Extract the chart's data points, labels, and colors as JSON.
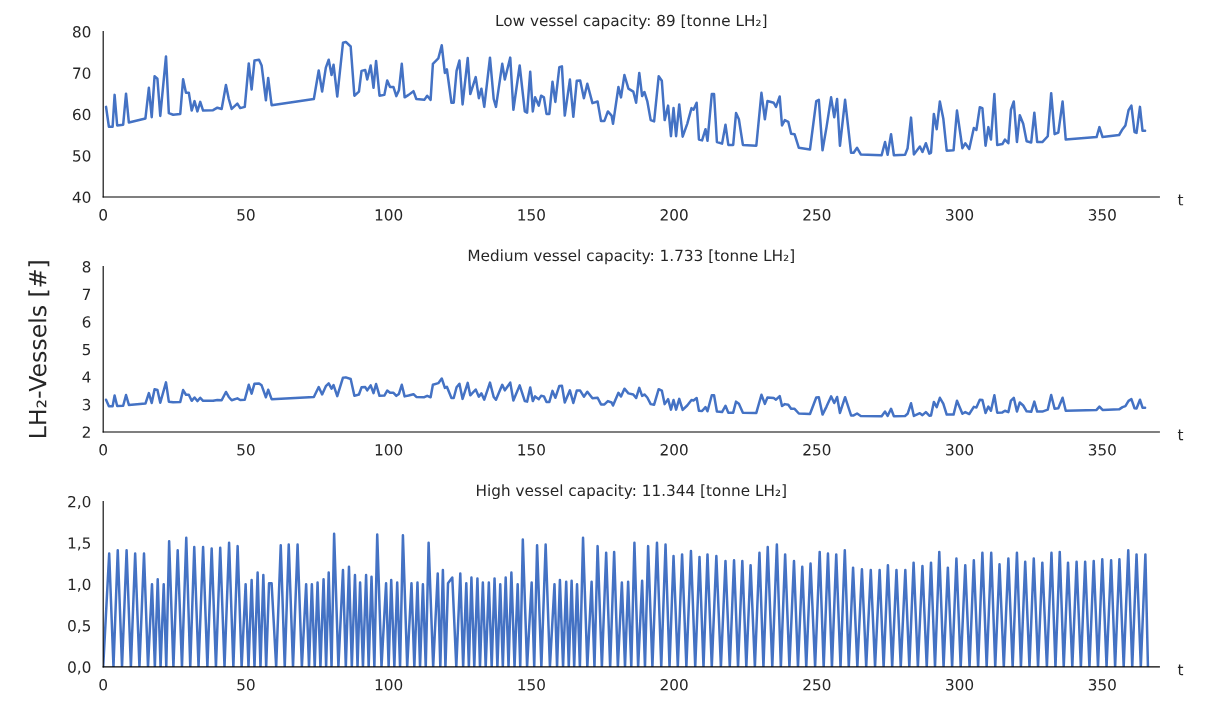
{
  "chart_data": [
    {
      "type": "line",
      "title": "Low vessel capacity: 89 [tonne LH₂]",
      "xlabel": "t",
      "xlim": [
        0,
        370
      ],
      "xticks": [
        0,
        50,
        100,
        150,
        200,
        250,
        300,
        350
      ],
      "ylim": [
        40,
        80
      ],
      "yticks": [
        40,
        50,
        60,
        70,
        80
      ],
      "grid": false,
      "marker": "none",
      "line_style": "solid",
      "x": [
        1,
        2,
        3.3,
        4,
        4.9,
        7,
        8,
        9,
        14.8,
        16,
        17,
        18,
        19,
        20,
        22,
        23,
        24.5,
        27,
        28,
        29,
        30,
        31,
        32,
        33,
        34,
        35,
        38.5,
        40,
        41.5,
        43,
        44,
        45,
        47,
        48,
        49.6,
        51,
        52,
        53,
        54.6,
        55.5,
        57,
        57.8,
        59,
        73.8,
        75.5,
        76.7,
        78,
        79,
        80,
        80.7,
        82,
        84,
        85,
        86.7,
        88,
        89.6,
        90.5,
        91.8,
        92.5,
        93.7,
        94.7,
        95.6,
        96.8,
        98.5,
        99.5,
        100.5,
        101.7,
        102.7,
        103.6,
        104.6,
        105.6,
        107,
        108.7,
        109.7,
        112.5,
        113.5,
        114.7,
        115.5,
        117.4,
        118.6,
        119.7,
        120.4,
        122,
        122.8,
        123.8,
        124.8,
        125.9,
        127.7,
        128.6,
        130.5,
        131.6,
        132.5,
        133.5,
        135.5,
        136.8,
        137.6,
        139.8,
        140.7,
        142.6,
        143.7,
        145.9,
        147.7,
        148.5,
        149.6,
        150.5,
        151.3,
        152.6,
        153.4,
        154.4,
        155.3,
        156.3,
        157.4,
        158.4,
        159.8,
        160.7,
        161.7,
        163.5,
        164.7,
        165.9,
        167.1,
        168.4,
        169.6,
        171.4,
        173.2,
        174.4,
        175.6,
        176.8,
        178.1,
        178.6,
        180.5,
        181.4,
        182.6,
        184,
        185.7,
        186.7,
        187.8,
        188.8,
        189.6,
        190.6,
        191.8,
        193,
        194.6,
        195.7,
        196.7,
        197.9,
        198.9,
        199.8,
        200.7,
        201.8,
        203,
        204.6,
        206.1,
        206.8,
        207.9,
        208.7,
        209.8,
        211,
        211.7,
        213.2,
        214,
        215,
        216.8,
        218,
        219,
        220.7,
        221.7,
        222.7,
        224.1,
        228.8,
        230.6,
        231.8,
        232.7,
        234.9,
        235.7,
        237,
        237.8,
        238.8,
        240,
        241,
        242.2,
        243.7,
        247.6,
        249.8,
        250.7,
        252,
        253.4,
        255,
        256.1,
        257.1,
        258.1,
        259.9,
        262,
        262.9,
        264.1,
        265.4,
        272.7,
        273.9,
        274.8,
        276,
        277,
        280.9,
        281.8,
        283,
        284,
        286.1,
        287,
        288.2,
        289.4,
        290,
        291,
        292,
        293.1,
        294.3,
        295.5,
        297.9,
        299.1,
        301,
        302,
        303.4,
        305,
        305.9,
        307.1,
        308,
        309.1,
        310.1,
        311,
        312.2,
        313.2,
        315,
        315.9,
        317.1,
        318,
        319,
        320.1,
        321.1,
        322.3,
        323.5,
        325.1,
        326.2,
        327.2,
        329,
        330.9,
        332.1,
        333.3,
        334.6,
        336.1,
        337.2,
        348,
        349,
        350.1,
        355.9,
        357.1,
        358.1,
        359.2,
        360.2,
        361.3,
        362,
        363.2,
        364.1,
        365
      ],
      "series": [
        {
          "color": "#4472c4",
          "values": [
            61.8,
            57,
            57,
            64.7,
            57.3,
            57.5,
            65,
            58,
            59,
            66.4,
            59.3,
            69.2,
            68.6,
            59.6,
            74,
            60.3,
            59.9,
            60.1,
            68.5,
            65.2,
            65.2,
            60.9,
            63.2,
            60.7,
            63,
            60.9,
            61,
            61.6,
            61.3,
            67.1,
            63.7,
            61.3,
            62.6,
            61.5,
            61.8,
            72.3,
            66,
            73,
            73.2,
            71.8,
            63.4,
            68.8,
            62.2,
            63.7,
            70.6,
            65.5,
            71.3,
            73.2,
            69.5,
            72,
            64.3,
            77.3,
            77.5,
            76.4,
            64.5,
            65.5,
            70.5,
            70.7,
            68.4,
            71.8,
            66.4,
            72.9,
            64.5,
            64.7,
            68.2,
            66.6,
            66.6,
            64.4,
            65.8,
            72.2,
            64.1,
            64.7,
            65.6,
            63.7,
            63.5,
            64.5,
            63.5,
            72.2,
            73.5,
            76.7,
            70,
            70.9,
            62.8,
            62.8,
            70.5,
            73,
            62.4,
            73.6,
            64.9,
            69,
            63.9,
            66.2,
            61.8,
            73.7,
            63.7,
            61.8,
            72.2,
            68.4,
            73.7,
            61.1,
            71.8,
            60.7,
            60.4,
            70.3,
            60.7,
            64.1,
            62.1,
            64.5,
            64.1,
            60.1,
            60.1,
            67.9,
            63,
            71.4,
            71.6,
            59.7,
            68.4,
            59.4,
            68.1,
            68.2,
            63.9,
            67.4,
            62.7,
            63.1,
            58.4,
            58.4,
            60.7,
            59.7,
            57.7,
            66.6,
            64.1,
            69.5,
            66.2,
            65.5,
            62.8,
            70,
            64.4,
            65.4,
            63.2,
            58.6,
            58.3,
            69.2,
            68.1,
            58.6,
            62.1,
            54.7,
            61.5,
            54.7,
            62.4,
            54.6,
            57.7,
            61.5,
            61.1,
            62.8,
            53.9,
            53.7,
            56.4,
            53.6,
            64.9,
            64.9,
            53.3,
            52.9,
            57.5,
            52.6,
            52.6,
            60.3,
            58.8,
            52.6,
            52.4,
            65.2,
            58.8,
            63.2,
            62.8,
            61.8,
            64.3,
            57.3,
            58.6,
            58.2,
            55.3,
            55.2,
            51.9,
            51.5,
            63.2,
            63.5,
            51.3,
            56.9,
            64.1,
            59.3,
            63.7,
            52.4,
            63.5,
            50.7,
            50.7,
            51.9,
            50.3,
            50.1,
            53.3,
            50.2,
            55.2,
            50.1,
            50.2,
            51.8,
            59.2,
            50.3,
            52.2,
            50.9,
            53,
            50.5,
            50.7,
            60.1,
            56.4,
            63.1,
            59,
            51.2,
            51.3,
            60.9,
            51.8,
            53,
            51.6,
            56.7,
            56.2,
            61.7,
            61.5,
            52.4,
            56.9,
            53.9,
            64.9,
            52.6,
            52.8,
            53.9,
            53,
            61.1,
            63.1,
            53.3,
            59.8,
            57.7,
            53.5,
            53.2,
            60.4,
            53.3,
            53.3,
            54.7,
            65.1,
            55.2,
            55.6,
            63.1,
            53.9,
            54.5,
            56.9,
            54.5,
            55,
            56.4,
            57.3,
            61,
            62.1,
            55.7,
            55.5,
            61.8,
            56,
            56
          ]
        }
      ]
    },
    {
      "type": "line",
      "title": "Medium vessel capacity: 1.733 [tonne LH₂]",
      "xlabel": "t",
      "ylabel": "LH₂-Vessels [#]",
      "xlim": [
        0,
        370
      ],
      "xticks": [
        0,
        50,
        100,
        150,
        200,
        250,
        300,
        350
      ],
      "ylim": [
        2,
        8
      ],
      "yticks": [
        2,
        3,
        4,
        5,
        6,
        7,
        8
      ],
      "grid": false,
      "marker": "none",
      "line_style": "solid",
      "x": [
        1,
        2,
        3.3,
        4,
        4.9,
        7,
        8,
        9,
        14.8,
        16,
        17,
        18,
        19,
        20,
        22,
        23,
        24.5,
        27,
        28,
        29,
        30,
        31,
        32,
        33,
        34,
        35,
        38.5,
        40,
        41.5,
        43,
        44,
        45,
        47,
        48,
        49.6,
        51,
        52,
        53,
        54.6,
        55.5,
        57,
        57.8,
        59,
        73.8,
        75.5,
        76.7,
        78,
        79,
        80,
        80.7,
        82,
        84,
        85,
        86.7,
        88,
        89.6,
        90.5,
        91.8,
        92.5,
        93.7,
        94.7,
        95.6,
        96.8,
        98.5,
        99.5,
        100.5,
        101.7,
        102.7,
        103.6,
        104.6,
        105.6,
        107,
        108.7,
        109.7,
        112.5,
        113.5,
        114.7,
        115.5,
        117.4,
        118.6,
        119.7,
        120.4,
        122,
        122.8,
        123.8,
        124.8,
        125.9,
        127.7,
        128.6,
        130.5,
        131.6,
        132.5,
        133.5,
        135.5,
        136.8,
        137.6,
        139.8,
        140.7,
        142.6,
        143.7,
        145.9,
        147.7,
        148.5,
        149.6,
        150.5,
        151.3,
        152.6,
        153.4,
        154.4,
        155.3,
        156.3,
        157.4,
        158.4,
        159.8,
        160.7,
        161.7,
        163.5,
        164.7,
        165.9,
        167.1,
        168.4,
        169.6,
        171.4,
        173.2,
        174.4,
        175.6,
        176.8,
        178.1,
        178.6,
        180.5,
        181.4,
        182.6,
        184,
        185.7,
        186.7,
        187.8,
        188.8,
        189.6,
        190.6,
        191.8,
        193,
        194.6,
        195.7,
        196.7,
        197.9,
        198.9,
        199.8,
        200.7,
        201.8,
        203,
        204.6,
        206.1,
        206.8,
        207.9,
        208.7,
        209.8,
        211,
        211.7,
        213.2,
        214,
        215,
        216.8,
        218,
        219,
        220.7,
        221.7,
        222.7,
        224.1,
        228.8,
        230.6,
        231.8,
        232.7,
        234.9,
        235.7,
        237,
        237.8,
        238.8,
        240,
        241,
        242.2,
        243.7,
        247.6,
        249.8,
        250.7,
        252,
        253.4,
        255,
        256.1,
        257.1,
        258.1,
        259.9,
        262,
        262.9,
        264.1,
        265.4,
        272.7,
        273.9,
        274.8,
        276,
        277,
        280.9,
        281.8,
        283,
        284,
        286.1,
        287,
        288.2,
        289.4,
        290,
        291,
        292,
        293.1,
        294.3,
        295.5,
        297.9,
        299.1,
        301,
        302,
        303.4,
        305,
        305.9,
        307.1,
        308,
        309.1,
        310.1,
        311,
        312.2,
        313.2,
        315,
        315.9,
        317.1,
        318,
        319,
        320.1,
        321.1,
        322.3,
        323.5,
        325.1,
        326.2,
        327.2,
        329,
        330.9,
        332.1,
        333.3,
        334.6,
        336.1,
        337.2,
        348,
        349,
        350.1,
        355.9,
        357.1,
        358.1,
        359.2,
        360.2,
        361.3,
        362,
        363.2,
        364.1,
        365
      ],
      "series": [
        {
          "color": "#4472c4",
          "values": [
            3.17,
            2.93,
            2.93,
            3.32,
            2.94,
            2.95,
            3.34,
            2.98,
            3.03,
            3.41,
            3.05,
            3.55,
            3.52,
            3.06,
            3.8,
            3.1,
            3.08,
            3.09,
            3.52,
            3.35,
            3.35,
            3.13,
            3.25,
            3.12,
            3.24,
            3.13,
            3.13,
            3.16,
            3.15,
            3.45,
            3.27,
            3.15,
            3.22,
            3.16,
            3.17,
            3.71,
            3.39,
            3.75,
            3.76,
            3.69,
            3.26,
            3.53,
            3.19,
            3.27,
            3.63,
            3.36,
            3.66,
            3.76,
            3.57,
            3.7,
            3.3,
            3.97,
            3.98,
            3.92,
            3.31,
            3.36,
            3.62,
            3.63,
            3.51,
            3.69,
            3.41,
            3.74,
            3.31,
            3.32,
            3.5,
            3.42,
            3.42,
            3.31,
            3.38,
            3.71,
            3.29,
            3.32,
            3.37,
            3.27,
            3.26,
            3.31,
            3.26,
            3.71,
            3.77,
            3.94,
            3.6,
            3.64,
            3.23,
            3.23,
            3.62,
            3.75,
            3.2,
            3.78,
            3.33,
            3.54,
            3.28,
            3.4,
            3.17,
            3.79,
            3.27,
            3.17,
            3.71,
            3.51,
            3.79,
            3.14,
            3.69,
            3.12,
            3.1,
            3.61,
            3.12,
            3.29,
            3.19,
            3.31,
            3.29,
            3.09,
            3.09,
            3.49,
            3.24,
            3.67,
            3.68,
            3.07,
            3.51,
            3.05,
            3.5,
            3.5,
            3.28,
            3.46,
            3.22,
            3.24,
            3,
            3,
            3.12,
            3.07,
            2.96,
            3.42,
            3.29,
            3.57,
            3.4,
            3.36,
            3.23,
            3.6,
            3.31,
            3.36,
            3.25,
            3.01,
            2.99,
            3.55,
            3.5,
            3.01,
            3.19,
            2.81,
            3.16,
            2.81,
            3.2,
            2.8,
            2.96,
            3.16,
            3.14,
            3.23,
            2.77,
            2.76,
            2.9,
            2.75,
            3.33,
            3.33,
            2.74,
            2.72,
            2.95,
            2.7,
            2.7,
            3.1,
            3.02,
            2.7,
            2.69,
            3.35,
            3.02,
            3.25,
            3.23,
            3.17,
            3.3,
            2.94,
            3.01,
            2.99,
            2.84,
            2.84,
            2.67,
            2.65,
            3.25,
            3.26,
            2.63,
            2.92,
            3.29,
            3.05,
            3.27,
            2.69,
            3.26,
            2.6,
            2.6,
            2.67,
            2.58,
            2.57,
            2.74,
            2.58,
            2.84,
            2.57,
            2.58,
            2.66,
            3.04,
            2.58,
            2.68,
            2.61,
            2.72,
            2.59,
            2.6,
            3.09,
            2.9,
            3.24,
            3.03,
            2.63,
            2.63,
            3.13,
            2.66,
            2.72,
            2.65,
            2.91,
            2.89,
            3.17,
            3.16,
            2.69,
            2.92,
            2.77,
            3.33,
            2.7,
            2.71,
            2.77,
            2.72,
            3.14,
            3.24,
            2.74,
            3.07,
            2.96,
            2.75,
            2.73,
            3.1,
            2.74,
            2.74,
            2.81,
            3.34,
            2.84,
            2.86,
            3.24,
            2.77,
            2.8,
            2.92,
            2.8,
            2.82,
            2.9,
            2.94,
            3.13,
            3.19,
            2.86,
            2.85,
            3.17,
            2.88,
            2.88
          ]
        }
      ]
    },
    {
      "type": "line",
      "title": "High vessel capacity: 11.344 [tonne LH₂]",
      "xlabel": "t",
      "xlim": [
        0,
        370
      ],
      "xticks": [
        0,
        50,
        100,
        150,
        200,
        250,
        300,
        350
      ],
      "ylim": [
        0,
        2
      ],
      "yticks": [
        {
          "value": 0,
          "label": "0,0"
        },
        {
          "value": 0.5,
          "label": "0,5"
        },
        {
          "value": 1,
          "label": "1,0"
        },
        {
          "value": 1.5,
          "label": "1,5"
        },
        {
          "value": 2,
          "label": "2,0"
        }
      ],
      "grid": false,
      "marker": "none",
      "line_style": "solid",
      "x": [
        0,
        2.1,
        3.6,
        5.1,
        6.6,
        8.2,
        9.7,
        11.2,
        12.7,
        14.3,
        15.7,
        17.1,
        18.1,
        19.1,
        20.1,
        21.2,
        22.1,
        23.1,
        24.6,
        26.1,
        27.6,
        29.1,
        30.5,
        31.9,
        33.4,
        35,
        36.5,
        38,
        39.5,
        41,
        42.5,
        44.1,
        45.6,
        47.1,
        48.5,
        49.9,
        50.9,
        52,
        53,
        54.1,
        55.1,
        56.1,
        57.1,
        58.1,
        59,
        60.6,
        62.2,
        63.6,
        65,
        66.5,
        68.1,
        69.6,
        71.1,
        72.1,
        73.1,
        74.1,
        75.1,
        76.1,
        77.2,
        78.1,
        79,
        80,
        80.9,
        82.4,
        84,
        85,
        86.1,
        87.1,
        88.2,
        89.1,
        90,
        91,
        92.1,
        93,
        94,
        95,
        96,
        97.5,
        99.1,
        100,
        100.9,
        102,
        103,
        104,
        105,
        106.5,
        108,
        109,
        110.1,
        111,
        112,
        113,
        114,
        115.6,
        117.2,
        118.1,
        119,
        119.9,
        120.8,
        122.3,
        123.7,
        125.1,
        126.1,
        127.2,
        128.1,
        129,
        130,
        131.1,
        132,
        133,
        134,
        135.1,
        136.1,
        137.1,
        138.1,
        139.1,
        140,
        141,
        142,
        143,
        144.1,
        145.2,
        146.1,
        147,
        148.5,
        150.1,
        151,
        152,
        153.5,
        155,
        156.5,
        158.1,
        159,
        160,
        161.1,
        162.2,
        163.1,
        164.1,
        165,
        166,
        167,
        168.1,
        169.6,
        171.1,
        172.1,
        173.2,
        174.7,
        176.2,
        177.6,
        179,
        180.3,
        181.7,
        182.8,
        183.9,
        185,
        186.1,
        187.4,
        188.8,
        189.8,
        190.9,
        192.4,
        194,
        195.5,
        197,
        198.4,
        199.8,
        201.3,
        202.8,
        204.3,
        205.9,
        207.4,
        208.9,
        210.3,
        211.7,
        213.2,
        214.8,
        216.4,
        218,
        219.5,
        221,
        222.4,
        223.9,
        225.3,
        226.8,
        228.3,
        229.9,
        231.3,
        232.8,
        234.4,
        236,
        237.4,
        238.9,
        240.4,
        242,
        243.4,
        244.9,
        246.3,
        247.8,
        249.4,
        251,
        252.4,
        253.9,
        255.3,
        256.8,
        258.3,
        259.8,
        261.2,
        262.7,
        264.2,
        265.8,
        267.3,
        268.9,
        270.4,
        272,
        273.4,
        274.9,
        276.4,
        277.9,
        279.4,
        281,
        282.4,
        283.9,
        285.4,
        287,
        288.5,
        290,
        291.4,
        292.9,
        294.4,
        295.9,
        297.4,
        298.9,
        300.4,
        302,
        303.5,
        305,
        306.5,
        308,
        309.5,
        311.1,
        312.5,
        314,
        315.5,
        317.1,
        318.6,
        320.1,
        321.5,
        323,
        324.5,
        326,
        327.5,
        329,
        330.6,
        332.2,
        333.6,
        335.1,
        336.5,
        338,
        339.5,
        341,
        342.5,
        344,
        345.5,
        347,
        348.5,
        350,
        351.5,
        353.1,
        354.5,
        356,
        357.5,
        359.1,
        360.5,
        362,
        363.5,
        365.1,
        366
      ],
      "series": [
        {
          "color": "#4472c4",
          "values": [
            0,
            1.37,
            0,
            1.41,
            0,
            1.41,
            0,
            1.37,
            0,
            1.37,
            0,
            1.0,
            0,
            1.06,
            0,
            1.0,
            0,
            1.52,
            0,
            1.41,
            0,
            1.56,
            0,
            1.45,
            0,
            1.45,
            0,
            1.43,
            0,
            1.44,
            0,
            1.5,
            0,
            1.46,
            0,
            1.0,
            0,
            1.05,
            0,
            1.14,
            0,
            1.11,
            0,
            1.01,
            1.01,
            0,
            1.47,
            0,
            1.48,
            0,
            1.48,
            0,
            1.0,
            0,
            1.0,
            0,
            1.02,
            0,
            1.06,
            0,
            1.14,
            0,
            1.61,
            0,
            1.17,
            0,
            1.21,
            0,
            1.11,
            0,
            1.02,
            0,
            1.11,
            0,
            1.09,
            0,
            1.6,
            0,
            1.01,
            0,
            1.05,
            0,
            1.02,
            0,
            1.59,
            0,
            1.01,
            0,
            1.02,
            0,
            1.0,
            0,
            1.5,
            0,
            1.13,
            0,
            1.17,
            0,
            1.01,
            1.08,
            0,
            1.13,
            0,
            1.01,
            0,
            1.08,
            0,
            1.07,
            0,
            1.02,
            0,
            1.02,
            0,
            1.07,
            0,
            1.0,
            0,
            1.08,
            0,
            1.14,
            0,
            1.0,
            0,
            1.54,
            0,
            1.02,
            0,
            1.47,
            0,
            1.48,
            0,
            1.0,
            0,
            1.05,
            0,
            1.03,
            0,
            1.04,
            0,
            1.0,
            0,
            1.56,
            0,
            1.03,
            0,
            1.46,
            0,
            1.38,
            0,
            1.39,
            0,
            1.02,
            0,
            1.03,
            0,
            1.5,
            0,
            1.04,
            0,
            1.46,
            0,
            1.5,
            0,
            1.48,
            0,
            1.34,
            0,
            1.36,
            0,
            1.4,
            0,
            1.33,
            0,
            1.36,
            0,
            1.34,
            0,
            1.28,
            0,
            1.29,
            0,
            1.28,
            0,
            1.23,
            0,
            1.38,
            0,
            1.45,
            0,
            1.48,
            0,
            1.36,
            0,
            1.28,
            0,
            1.21,
            0,
            1.25,
            0,
            1.39,
            0,
            1.37,
            0,
            1.36,
            0,
            1.41,
            0,
            1.2,
            0,
            1.18,
            0,
            1.17,
            0,
            1.17,
            0,
            1.23,
            0,
            1.17,
            0,
            1.17,
            0,
            1.26,
            0,
            1.22,
            0,
            1.26,
            0,
            1.39,
            0,
            1.2,
            0,
            1.31,
            0,
            1.23,
            0,
            1.29,
            0,
            1.38,
            0,
            1.38,
            0,
            1.24,
            0,
            1.31,
            0,
            1.38,
            0,
            1.27,
            0,
            1.31,
            0,
            1.26,
            0,
            1.38,
            0,
            1.39,
            0,
            1.26,
            0,
            1.27,
            0,
            1.27,
            0,
            1.28,
            0,
            1.3,
            0,
            1.29,
            0,
            1.3,
            0,
            1.41,
            0,
            1.36,
            0,
            1.36,
            0
          ]
        }
      ]
    }
  ]
}
